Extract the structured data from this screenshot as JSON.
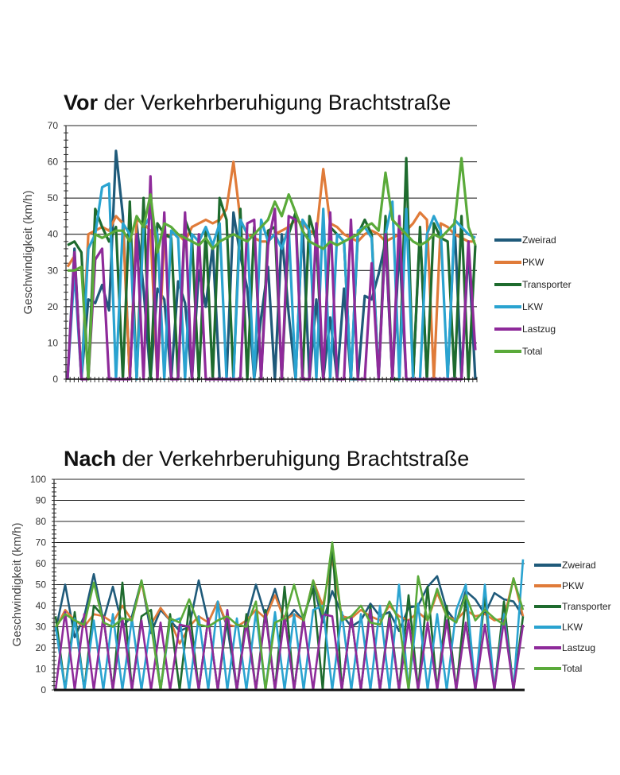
{
  "chart_data": [
    {
      "type": "line",
      "title_bold": "Vor",
      "title_rest": " der Verkehrberuhigung Brachtstraße",
      "xlabel": "",
      "ylabel": "Geschwindigkeit (km/h)",
      "ylim": [
        0,
        70
      ],
      "yticks": [
        "0",
        "10",
        "20",
        "30",
        "40",
        "50",
        "60",
        "70"
      ],
      "grid": true,
      "legend_position": "right",
      "series": [
        {
          "name": "Zweirad",
          "color": "#1f5a7a",
          "values": [
            0,
            36,
            0,
            22,
            21,
            26,
            19,
            63,
            45,
            0,
            43,
            25,
            0,
            25,
            22,
            0,
            27,
            21,
            0,
            30,
            20,
            37,
            0,
            0,
            46,
            34,
            25,
            0,
            17,
            31,
            0,
            40,
            18,
            0,
            43,
            0,
            22,
            0,
            17,
            0,
            25,
            0,
            0,
            23,
            22,
            29,
            38,
            0,
            37,
            0,
            0,
            41,
            0,
            0,
            0,
            0,
            43,
            0,
            36,
            0
          ]
        },
        {
          "name": "PKW",
          "color": "#e07b39",
          "values": [
            31,
            34,
            0,
            40,
            41,
            42,
            41,
            45,
            43,
            0,
            44,
            43,
            41,
            0,
            39,
            40,
            40,
            38,
            42,
            43,
            44,
            43,
            44,
            47,
            60,
            44,
            40,
            39,
            38,
            38,
            40,
            41,
            42,
            44,
            43,
            41,
            40,
            58,
            43,
            42,
            40,
            39,
            38,
            40,
            41,
            40,
            38,
            39,
            40,
            41,
            43,
            46,
            44,
            0,
            43,
            42,
            40,
            39,
            38,
            38
          ]
        },
        {
          "name": "Transporter",
          "color": "#1e6b2e",
          "values": [
            37,
            38,
            35,
            0,
            47,
            42,
            38,
            42,
            0,
            49,
            0,
            50,
            0,
            43,
            40,
            39,
            0,
            44,
            39,
            0,
            41,
            0,
            50,
            44,
            0,
            47,
            0,
            42,
            0,
            41,
            42,
            0,
            40,
            46,
            0,
            45,
            38,
            0,
            42,
            40,
            38,
            0,
            40,
            44,
            40,
            0,
            45,
            0,
            0,
            61,
            0,
            42,
            0,
            43,
            39,
            38,
            0,
            45,
            0,
            37
          ]
        },
        {
          "name": "LKW",
          "color": "#2aa3d0",
          "values": [
            0,
            30,
            0,
            36,
            40,
            53,
            54,
            0,
            43,
            40,
            0,
            42,
            45,
            40,
            0,
            41,
            39,
            0,
            40,
            38,
            42,
            37,
            43,
            0,
            0,
            44,
            40,
            0,
            44,
            38,
            40,
            36,
            42,
            0,
            44,
            41,
            0,
            47,
            0,
            40,
            38,
            0,
            41,
            42,
            39,
            0,
            40,
            49,
            0,
            47,
            0,
            0,
            40,
            45,
            41,
            0,
            44,
            42,
            40,
            39
          ]
        },
        {
          "name": "Lastzug",
          "color": "#8e2a9a",
          "values": [
            0,
            35,
            0,
            0,
            33,
            36,
            0,
            0,
            0,
            0,
            40,
            0,
            56,
            0,
            46,
            0,
            0,
            46,
            0,
            40,
            0,
            0,
            0,
            0,
            0,
            0,
            43,
            44,
            0,
            37,
            47,
            0,
            45,
            44,
            0,
            0,
            43,
            0,
            46,
            0,
            0,
            44,
            0,
            0,
            32,
            0,
            40,
            0,
            45,
            0,
            0,
            0,
            0,
            0,
            0,
            0,
            0,
            0,
            38,
            8
          ]
        },
        {
          "name": "Total",
          "color": "#5aaa3a",
          "values": [
            30,
            30,
            31,
            0,
            40,
            39,
            40,
            41,
            41,
            38,
            45,
            42,
            51,
            35,
            43,
            42,
            40,
            39,
            38,
            37,
            39,
            36,
            38,
            39,
            40,
            39,
            38,
            40,
            42,
            44,
            49,
            45,
            51,
            46,
            41,
            38,
            37,
            36,
            38,
            37,
            38,
            39,
            40,
            42,
            43,
            41,
            57,
            44,
            42,
            40,
            38,
            37,
            38,
            40,
            39,
            41,
            43,
            61,
            42,
            37
          ]
        }
      ]
    },
    {
      "type": "line",
      "title_bold": "Nach",
      "title_rest": " der Verkehrberuhigung Brachtstraße",
      "xlabel": "",
      "ylabel": "Geschwindigkeit (km/h)",
      "ylim": [
        0,
        100
      ],
      "yticks": [
        "0",
        "10",
        "20",
        "30",
        "40",
        "50",
        "60",
        "70",
        "80",
        "90",
        "100"
      ],
      "grid": true,
      "legend_position": "right",
      "series": [
        {
          "name": "Zweirad",
          "color": "#1f5a7a",
          "values": [
            28,
            50,
            25,
            35,
            55,
            33,
            49,
            30,
            35,
            52,
            27,
            38,
            33,
            28,
            30,
            52,
            32,
            42,
            30,
            0,
            33,
            50,
            35,
            48,
            32,
            38,
            33,
            51,
            32,
            47,
            36,
            30,
            33,
            41,
            35,
            37,
            28,
            39,
            40,
            49,
            54,
            38,
            32,
            47,
            43,
            36,
            46,
            43,
            42,
            35
          ]
        },
        {
          "name": "PKW",
          "color": "#e07b39",
          "values": [
            29,
            38,
            33,
            30,
            36,
            35,
            32,
            40,
            33,
            51,
            31,
            39,
            33,
            22,
            30,
            35,
            32,
            42,
            31,
            30,
            33,
            38,
            34,
            45,
            33,
            36,
            33,
            52,
            40,
            62,
            35,
            34,
            38,
            35,
            33,
            40,
            35,
            33,
            37,
            33,
            46,
            35,
            33,
            38,
            35,
            36,
            33,
            34,
            53,
            35
          ]
        },
        {
          "name": "Transporter",
          "color": "#1e6b2e",
          "values": [
            35,
            0,
            37,
            0,
            40,
            35,
            0,
            51,
            0,
            35,
            38,
            0,
            36,
            0,
            40,
            0,
            34,
            0,
            35,
            0,
            36,
            0,
            38,
            0,
            49,
            0,
            35,
            48,
            0,
            70,
            0,
            35,
            0,
            40,
            0,
            36,
            0,
            45,
            0,
            49,
            0,
            40,
            0,
            44,
            0,
            45,
            0,
            42,
            0,
            35
          ]
        },
        {
          "name": "LKW",
          "color": "#2aa3d0",
          "values": [
            30,
            0,
            34,
            0,
            33,
            0,
            36,
            0,
            34,
            0,
            33,
            0,
            32,
            34,
            0,
            35,
            0,
            42,
            0,
            34,
            0,
            37,
            0,
            37,
            0,
            36,
            0,
            38,
            40,
            0,
            37,
            0,
            36,
            0,
            40,
            0,
            50,
            0,
            41,
            0,
            36,
            0,
            38,
            50,
            0,
            50,
            0,
            36,
            0,
            62
          ]
        },
        {
          "name": "Lastzug",
          "color": "#8e2a9a",
          "values": [
            0,
            37,
            0,
            36,
            0,
            35,
            0,
            34,
            0,
            33,
            0,
            32,
            0,
            31,
            30,
            0,
            34,
            0,
            38,
            0,
            32,
            0,
            36,
            0,
            35,
            0,
            34,
            0,
            36,
            35,
            0,
            35,
            0,
            38,
            0,
            34,
            0,
            33,
            0,
            32,
            0,
            33,
            0,
            32,
            0,
            31,
            0,
            33,
            0,
            31
          ]
        },
        {
          "name": "Total",
          "color": "#5aaa3a",
          "values": [
            30,
            36,
            33,
            31,
            51,
            32,
            30,
            34,
            33,
            52,
            31,
            0,
            34,
            32,
            43,
            31,
            30,
            33,
            35,
            31,
            30,
            42,
            0,
            32,
            34,
            50,
            33,
            52,
            36,
            70,
            33,
            35,
            40,
            32,
            31,
            42,
            33,
            0,
            54,
            33,
            48,
            35,
            32,
            45,
            33,
            38,
            34,
            31,
            53,
            38
          ]
        }
      ]
    }
  ]
}
